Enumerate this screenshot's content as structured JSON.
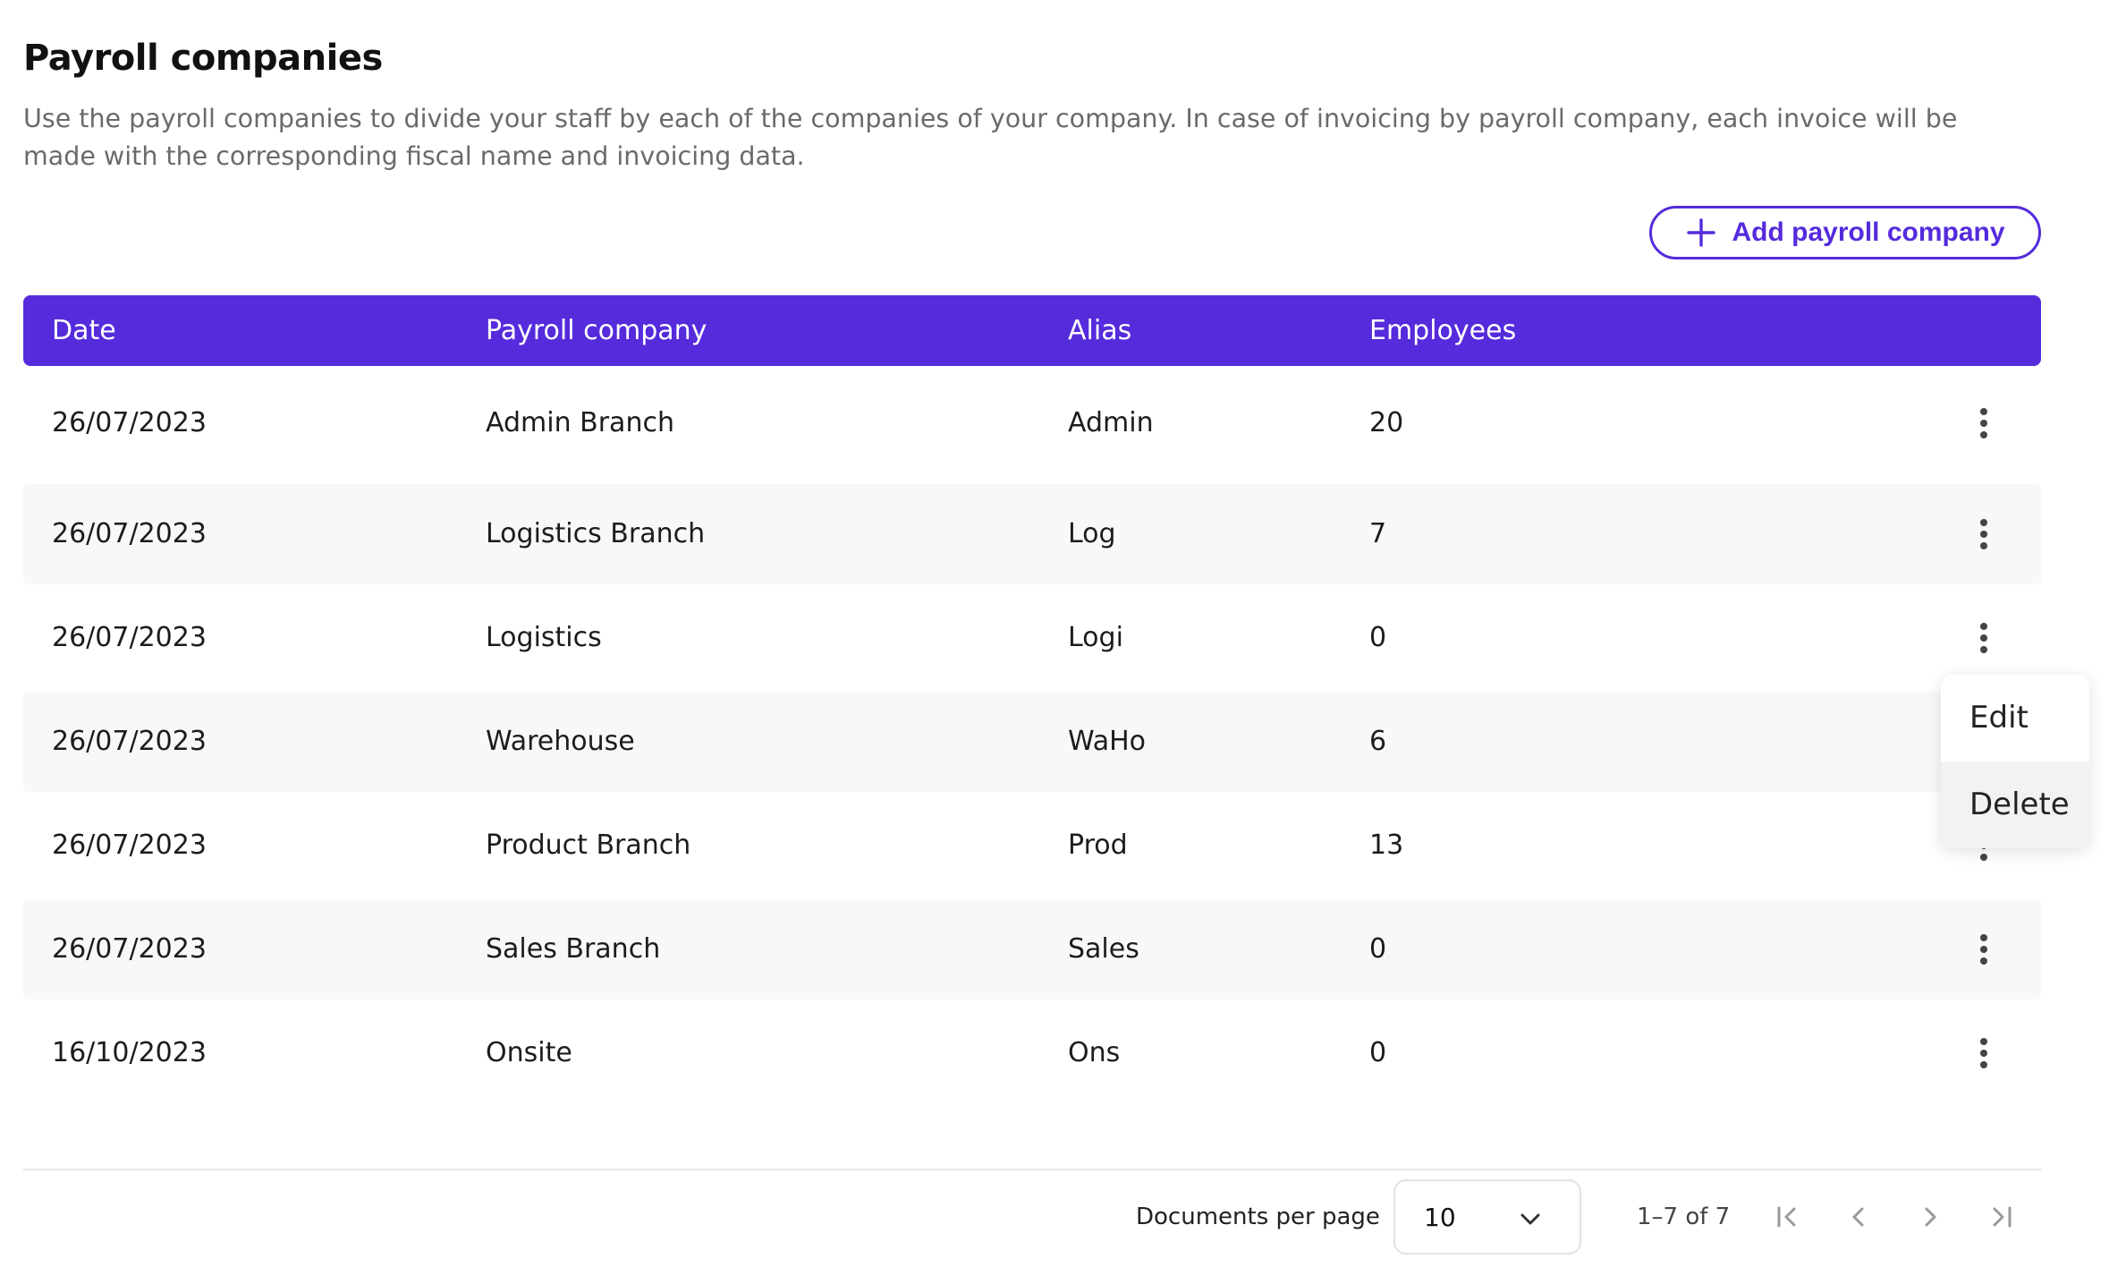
{
  "page": {
    "title": "Payroll companies",
    "description": "Use the payroll companies to divide your staff by each of the companies of your company. In case of invoicing by payroll company, each invoice will be made with the corresponding fiscal name and invoicing data."
  },
  "actions": {
    "add_label": "Add payroll company",
    "add_icon": "plus-icon"
  },
  "table": {
    "columns": [
      "Date",
      "Payroll company",
      "Alias",
      "Employees"
    ],
    "rows": [
      {
        "date": "26/07/2023",
        "company": "Admin Branch",
        "alias": "Admin",
        "employees": "20"
      },
      {
        "date": "26/07/2023",
        "company": "Logistics Branch",
        "alias": "Log",
        "employees": "7"
      },
      {
        "date": "26/07/2023",
        "company": "Logistics",
        "alias": "Logi",
        "employees": "0"
      },
      {
        "date": "26/07/2023",
        "company": "Warehouse",
        "alias": "WaHo",
        "employees": "6"
      },
      {
        "date": "26/07/2023",
        "company": "Product Branch",
        "alias": "Prod",
        "employees": "13"
      },
      {
        "date": "26/07/2023",
        "company": "Sales Branch",
        "alias": "Sales",
        "employees": "0"
      },
      {
        "date": "16/10/2023",
        "company": "Onsite",
        "alias": "Ons",
        "employees": "0"
      }
    ]
  },
  "context_menu": {
    "items": [
      "Edit",
      "Delete"
    ]
  },
  "pagination": {
    "per_page_label": "Documents per page",
    "per_page_value": "10",
    "range": "1–7 of 7"
  },
  "colors": {
    "accent": "#552bdc",
    "row_alt": "#f8f8f8"
  }
}
